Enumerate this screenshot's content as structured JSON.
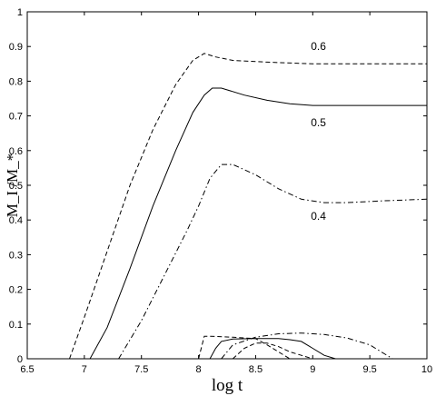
{
  "chart_data": {
    "type": "line",
    "xlabel": "log t",
    "ylabel": "M_I /M_*",
    "xlim": [
      6.5,
      10
    ],
    "ylim": [
      0,
      1
    ],
    "x_ticks": [
      "6.5",
      "7",
      "7.5",
      "8",
      "8.5",
      "9",
      "9.5",
      "10"
    ],
    "y_ticks": [
      "0",
      "0.1",
      "0.2",
      "0.3",
      "0.4",
      "0.5",
      "0.6",
      "0.7",
      "0.8",
      "0.9",
      "1"
    ],
    "grid": false,
    "box": true,
    "curve_labels": [
      {
        "text": "0.6",
        "x": 9.05,
        "y": 0.89
      },
      {
        "text": "0.5",
        "x": 9.05,
        "y": 0.67
      },
      {
        "text": "0.4",
        "x": 9.05,
        "y": 0.4
      }
    ],
    "series": [
      {
        "style": "dashed",
        "x": [
          6.87,
          7.0,
          7.2,
          7.4,
          7.6,
          7.8,
          7.95,
          8.05,
          8.15,
          8.3,
          8.6,
          9.0,
          9.5,
          10.0
        ],
        "y": [
          0.0,
          0.12,
          0.31,
          0.5,
          0.66,
          0.79,
          0.86,
          0.88,
          0.87,
          0.86,
          0.855,
          0.85,
          0.85,
          0.85
        ]
      },
      {
        "style": "solid",
        "x": [
          7.05,
          7.2,
          7.4,
          7.6,
          7.8,
          7.95,
          8.05,
          8.12,
          8.2,
          8.4,
          8.6,
          8.8,
          9.0,
          9.5,
          10.0
        ],
        "y": [
          0.0,
          0.09,
          0.26,
          0.44,
          0.6,
          0.71,
          0.76,
          0.78,
          0.78,
          0.76,
          0.745,
          0.735,
          0.73,
          0.73,
          0.73
        ]
      },
      {
        "style": "dashdot",
        "x": [
          7.3,
          7.5,
          7.7,
          7.9,
          8.0,
          8.1,
          8.2,
          8.3,
          8.5,
          8.7,
          8.9,
          9.1,
          9.3,
          9.6,
          10.0
        ],
        "y": [
          0.0,
          0.11,
          0.24,
          0.37,
          0.44,
          0.52,
          0.56,
          0.56,
          0.53,
          0.49,
          0.46,
          0.45,
          0.45,
          0.455,
          0.46
        ]
      },
      {
        "style": "dashed",
        "x": [
          8.0,
          8.05,
          8.1,
          8.3,
          8.5,
          8.6,
          8.7,
          8.8,
          8.9,
          9.0
        ],
        "y": [
          0.0,
          0.065,
          0.065,
          0.062,
          0.058,
          0.04,
          0.02,
          0.0,
          0.0,
          0.0
        ]
      },
      {
        "style": "solid",
        "x": [
          8.1,
          8.15,
          8.2,
          8.3,
          8.5,
          8.7,
          8.8,
          8.9,
          9.0,
          9.1,
          9.2
        ],
        "y": [
          0.0,
          0.03,
          0.05,
          0.057,
          0.058,
          0.058,
          0.055,
          0.05,
          0.03,
          0.01,
          0.0
        ]
      },
      {
        "style": "dashdot",
        "x": [
          8.2,
          8.3,
          8.5,
          8.7,
          8.9,
          9.1,
          9.3,
          9.5,
          9.6,
          9.7
        ],
        "y": [
          0.0,
          0.04,
          0.062,
          0.072,
          0.074,
          0.07,
          0.06,
          0.04,
          0.02,
          0.0
        ]
      },
      {
        "style": "dashed",
        "x": [
          8.3,
          8.4,
          8.5,
          8.6,
          8.7,
          8.8,
          8.9,
          9.0
        ],
        "y": [
          0.0,
          0.03,
          0.045,
          0.045,
          0.035,
          0.02,
          0.01,
          0.0
        ]
      }
    ]
  }
}
